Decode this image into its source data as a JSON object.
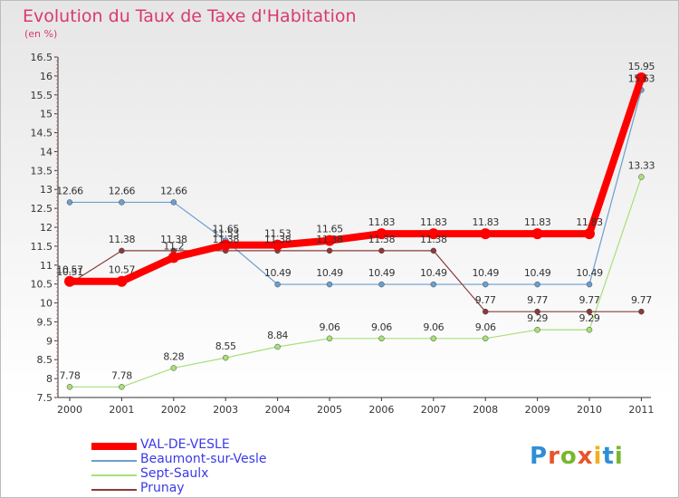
{
  "title": "Evolution du Taux de Taxe d'Habitation",
  "subtitle": "(en %)",
  "logo": {
    "letters": [
      "P",
      "r",
      "o",
      "x",
      "i",
      "t",
      "i"
    ],
    "colors": [
      "#2f8fd6",
      "#e8542b",
      "#78b72e",
      "#e8542b",
      "#f2b01e",
      "#2f8fd6",
      "#78b72e"
    ]
  },
  "chart_data": {
    "type": "line",
    "x": [
      "2000",
      "2001",
      "2002",
      "2003",
      "2004",
      "2005",
      "2006",
      "2007",
      "2008",
      "2009",
      "2010",
      "2011"
    ],
    "ylim": [
      7.5,
      16.5
    ],
    "yticks": [
      "7.5",
      "8",
      "8.5",
      "9",
      "9.5",
      "10",
      "10.5",
      "11",
      "11.5",
      "12",
      "12.5",
      "13",
      "13.5",
      "14",
      "14.5",
      "15",
      "15.5",
      "16",
      "16.5"
    ],
    "grid": false,
    "legend": "bottom-left",
    "series": [
      {
        "name": "VAL-DE-VESLE",
        "color": "#ff0000",
        "width": 8,
        "values": [
          10.57,
          10.57,
          11.2,
          11.53,
          11.53,
          11.65,
          11.83,
          11.83,
          11.83,
          11.83,
          11.83,
          15.95
        ],
        "labels": [
          "10.57",
          "10.57",
          "11.2",
          "11.53",
          "11.53",
          "11.65",
          "11.83",
          "11.83",
          "11.83",
          "11.83",
          "11.83",
          "15.95"
        ]
      },
      {
        "name": "Beaumont-sur-Vesle",
        "color": "#6a9fd0",
        "width": 1.2,
        "values": [
          12.66,
          12.66,
          12.66,
          11.65,
          10.49,
          10.49,
          10.49,
          10.49,
          10.49,
          10.49,
          10.49,
          15.63
        ],
        "labels": [
          "12.66",
          "12.66",
          "12.66",
          "11.65",
          "10.49",
          "10.49",
          "10.49",
          "10.49",
          "10.49",
          "10.49",
          "10.49",
          "15.63"
        ]
      },
      {
        "name": "Sept-Saulx",
        "color": "#a8df78",
        "width": 1.2,
        "values": [
          7.78,
          7.78,
          8.28,
          8.55,
          8.84,
          9.06,
          9.06,
          9.06,
          9.06,
          9.29,
          9.29,
          13.33
        ],
        "labels": [
          "7.78",
          "7.78",
          "8.28",
          "8.55",
          "8.84",
          "9.06",
          "9.06",
          "9.06",
          "9.06",
          "9.29",
          "9.29",
          "13.33"
        ]
      },
      {
        "name": "Prunay",
        "color": "#8a3a3a",
        "width": 1.2,
        "values": [
          10.51,
          11.38,
          11.38,
          11.38,
          11.38,
          11.38,
          11.38,
          11.38,
          9.77,
          9.77,
          9.77,
          9.77
        ],
        "labels": [
          "10.51",
          "11.38",
          "11.38",
          "11.38",
          "11.38",
          "11.38",
          "11.38",
          "11.38",
          "9.77",
          "9.77",
          "9.77",
          "9.77"
        ]
      }
    ]
  }
}
